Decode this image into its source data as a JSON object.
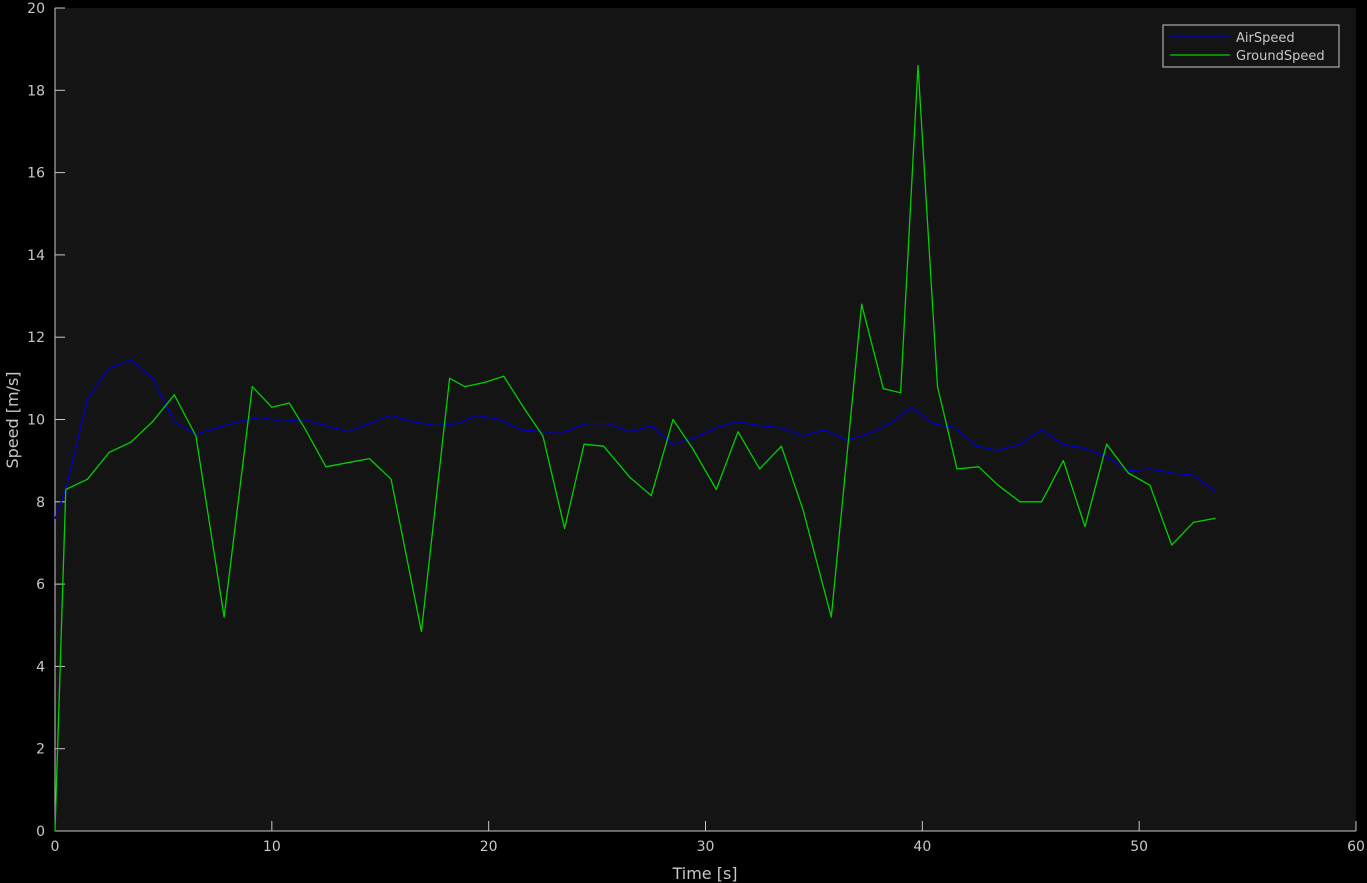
{
  "chart_data": {
    "type": "line",
    "title": "",
    "xlabel": "Time [s]",
    "ylabel": "Speed [m/s]",
    "xlim": [
      0,
      60
    ],
    "ylim": [
      0,
      20
    ],
    "xticks": [
      0,
      10,
      20,
      30,
      40,
      50,
      60
    ],
    "yticks": [
      0,
      2,
      4,
      6,
      8,
      10,
      12,
      14,
      16,
      18,
      20
    ],
    "grid": false,
    "legend_position": "top-right",
    "colors": {
      "background": "#000000",
      "plot_area": "#141414",
      "axes": "#c8c8c8",
      "text": "#c8c8c8"
    },
    "series": [
      {
        "name": "AirSpeed",
        "color": "#0000cc",
        "x": [
          0.0,
          0.5,
          1.5,
          2.5,
          3.5,
          4.5,
          5.5,
          6.5,
          7.5,
          8.5,
          9.5,
          10.5,
          11.5,
          12.5,
          13.5,
          14.5,
          15.5,
          16.5,
          17.5,
          18.5,
          19.5,
          20.5,
          21.5,
          22.5,
          23.5,
          24.5,
          25.5,
          26.5,
          27.5,
          28.5,
          29.5,
          30.5,
          31.5,
          32.5,
          33.5,
          34.5,
          35.5,
          36.5,
          37.5,
          38.5,
          39.5,
          40.5,
          41.5,
          42.5,
          43.5,
          44.5,
          45.5,
          46.5,
          47.5,
          48.5,
          49.5,
          50.5,
          51.5,
          52.5,
          53.5
        ],
        "y": [
          7.6,
          8.3,
          10.5,
          11.25,
          11.45,
          11.0,
          9.95,
          9.65,
          9.8,
          9.95,
          10.05,
          9.95,
          10.0,
          9.85,
          9.7,
          9.9,
          10.1,
          9.95,
          9.85,
          9.9,
          10.1,
          10.0,
          9.75,
          9.7,
          9.7,
          9.9,
          9.9,
          9.7,
          9.85,
          9.4,
          9.55,
          9.8,
          9.95,
          9.85,
          9.8,
          9.6,
          9.75,
          9.5,
          9.65,
          9.9,
          10.3,
          9.9,
          9.8,
          9.35,
          9.25,
          9.4,
          9.75,
          9.4,
          9.3,
          9.1,
          8.75,
          8.8,
          8.7,
          8.65,
          8.25
        ]
      },
      {
        "name": "GroundSpeed",
        "color": "#00d000",
        "x": [
          0.0,
          0.5,
          1.5,
          2.5,
          3.5,
          4.5,
          5.5,
          6.5,
          7.8,
          9.1,
          10.0,
          10.8,
          11.5,
          12.5,
          13.5,
          14.5,
          15.5,
          16.9,
          18.2,
          18.9,
          19.8,
          20.7,
          21.6,
          22.5,
          23.5,
          24.4,
          25.3,
          26.5,
          27.5,
          28.5,
          29.4,
          30.5,
          31.5,
          32.5,
          33.5,
          34.5,
          35.8,
          37.2,
          38.2,
          39.0,
          39.8,
          40.7,
          41.6,
          42.6,
          43.5,
          44.5,
          45.5,
          46.5,
          47.5,
          48.5,
          49.5,
          50.5,
          51.5,
          52.5,
          53.5
        ],
        "y": [
          0.0,
          8.3,
          8.55,
          9.2,
          9.45,
          9.95,
          10.6,
          9.6,
          5.2,
          10.8,
          10.3,
          10.4,
          9.8,
          8.85,
          8.95,
          9.05,
          8.55,
          4.85,
          11.0,
          10.8,
          10.9,
          11.05,
          10.3,
          9.6,
          7.35,
          9.4,
          9.35,
          8.6,
          8.15,
          10.0,
          9.3,
          8.3,
          9.7,
          8.8,
          9.35,
          7.8,
          5.2,
          12.8,
          10.75,
          10.65,
          18.6,
          10.8,
          8.8,
          8.85,
          8.4,
          8.0,
          8.0,
          9.0,
          7.4,
          9.4,
          8.7,
          8.4,
          6.95,
          7.5,
          7.6
        ]
      }
    ]
  }
}
